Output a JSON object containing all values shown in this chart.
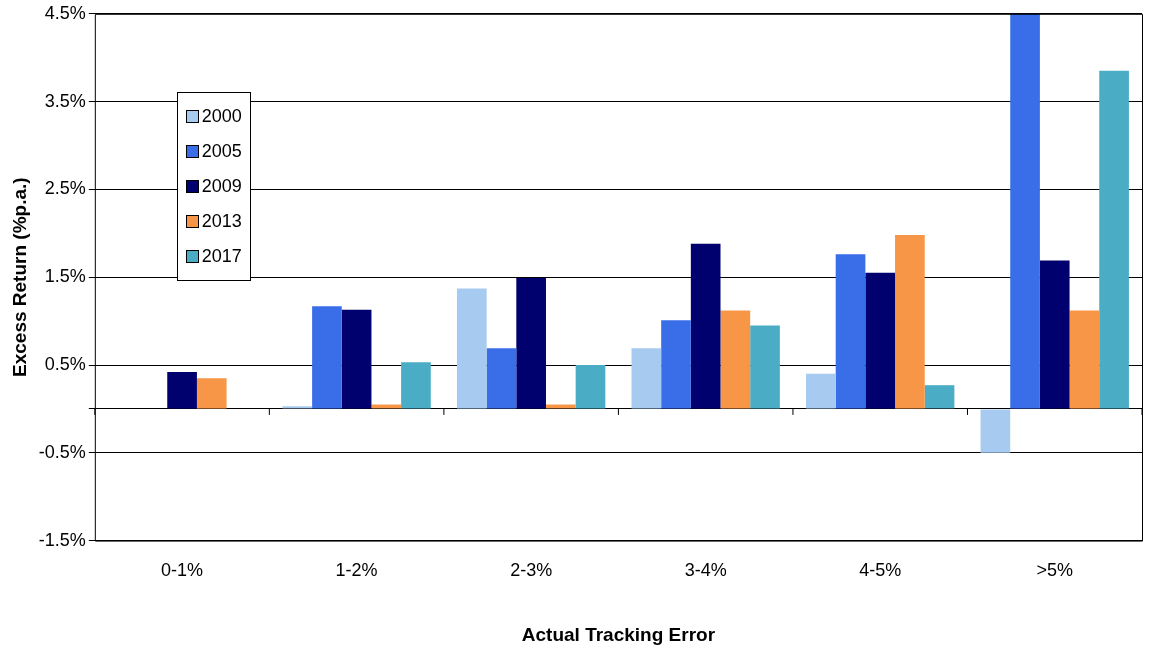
{
  "chart_data": {
    "type": "bar",
    "xlabel": "Actual Tracking Error",
    "ylabel": "Excess Return (%p.a.)",
    "categories": [
      "0-1%",
      "1-2%",
      "2-3%",
      "3-4%",
      "4-5%",
      ">5%"
    ],
    "series": [
      {
        "name": "2000",
        "color": "#a6caf0",
        "values": [
          null,
          0.03,
          1.37,
          0.69,
          0.4,
          -0.5
        ]
      },
      {
        "name": "2005",
        "color": "#3a6ee8",
        "values": [
          null,
          1.17,
          0.69,
          1.01,
          1.76,
          4.5
        ]
      },
      {
        "name": "2009",
        "color": "#00006e",
        "values": [
          0.42,
          1.13,
          1.49,
          1.88,
          1.55,
          1.69
        ]
      },
      {
        "name": "2013",
        "color": "#f79646",
        "values": [
          0.35,
          0.05,
          0.05,
          1.12,
          1.98,
          1.12
        ]
      },
      {
        "name": "2017",
        "color": "#4bacc6",
        "values": [
          null,
          0.53,
          0.5,
          0.95,
          0.27,
          3.85
        ]
      }
    ],
    "ylim": [
      -1.5,
      4.5
    ],
    "yticks": [
      {
        "value": -1.5,
        "label": "-1.5%"
      },
      {
        "value": -0.5,
        "label": "-0.5%"
      },
      {
        "value": 0,
        "label": null
      },
      {
        "value": 0.5,
        "label": "0.5%"
      },
      {
        "value": 1.5,
        "label": "1.5%"
      },
      {
        "value": 2.5,
        "label": "2.5%"
      },
      {
        "value": 3.5,
        "label": "3.5%"
      },
      {
        "value": 4.5,
        "label": "4.5%"
      }
    ],
    "grid": "y",
    "legend": "top left"
  }
}
